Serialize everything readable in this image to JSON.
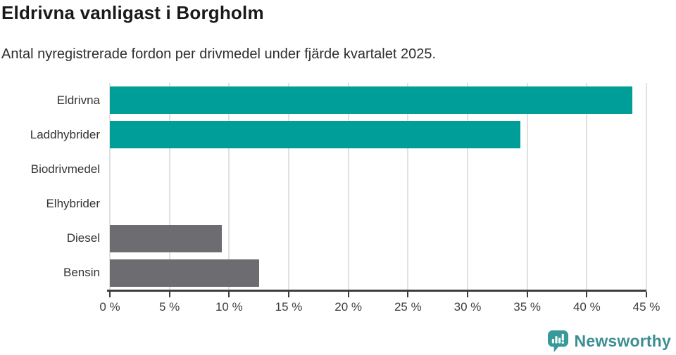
{
  "title": "Eldrivna vanligast i Borgholm",
  "subtitle": "Antal nyregistrerade fordon per drivmedel under fjärde kvartalet 2025.",
  "colors": {
    "teal_bar": "#009e98",
    "gray_bar": "#6d6d71",
    "axis": "#3e3e3e",
    "gridline": "#e1e1e1",
    "title_text": "#191919",
    "label_text": "#333333",
    "logo_teal": "#359a98",
    "logo_wordmark": "#3c8e92"
  },
  "chart_data": {
    "type": "bar",
    "orientation": "horizontal",
    "title": "Eldrivna vanligast i Borgholm",
    "subtitle": "Antal nyregistrerade fordon per drivmedel under fjärde kvartalet 2025.",
    "categories": [
      "Eldrivna",
      "Laddhybrider",
      "Biodrivmedel",
      "Elhybrider",
      "Diesel",
      "Bensin"
    ],
    "values": [
      43.8,
      34.4,
      0,
      0,
      9.4,
      12.5
    ],
    "bar_colors": [
      "#009e98",
      "#009e98",
      "#009e98",
      "#009e98",
      "#6d6d71",
      "#6d6d71"
    ],
    "unit": "%",
    "xlabel": "",
    "ylabel": "",
    "xlim": [
      0,
      45
    ],
    "grid": true,
    "legend": false,
    "x_ticks": [
      {
        "value": 0,
        "label": "0 %"
      },
      {
        "value": 5,
        "label": "5 %"
      },
      {
        "value": 10,
        "label": "10 %"
      },
      {
        "value": 15,
        "label": "15 %"
      },
      {
        "value": 20,
        "label": "20 %"
      },
      {
        "value": 25,
        "label": "25 %"
      },
      {
        "value": 30,
        "label": "30 %"
      },
      {
        "value": 35,
        "label": "35 %"
      },
      {
        "value": 40,
        "label": "40 %"
      },
      {
        "value": 45,
        "label": "45 %"
      }
    ]
  },
  "logo": {
    "text": "Newsworthy",
    "icon": "newsworthy-speech-bubble-bar-chart-icon"
  }
}
